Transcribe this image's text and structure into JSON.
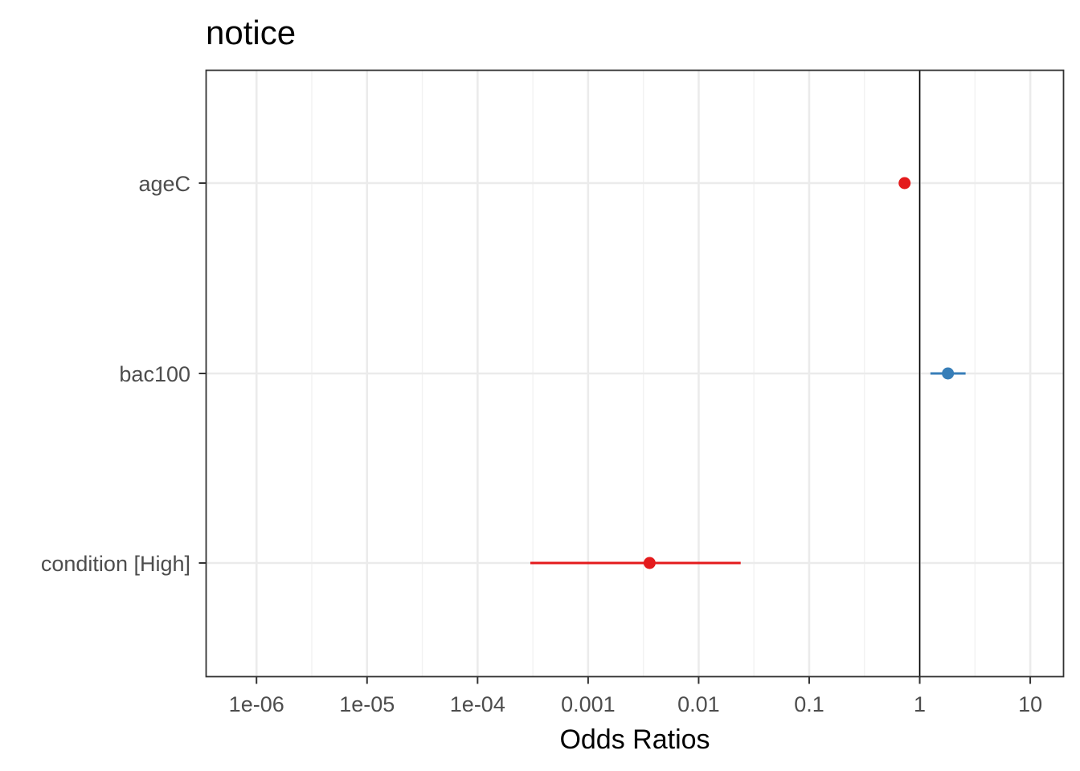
{
  "chart_data": {
    "type": "scatter",
    "title": "notice",
    "xlabel": "Odds Ratios",
    "ylabel": "",
    "x_scale": "log10",
    "xlim": [
      3.5e-07,
      20
    ],
    "x_ticks": [
      {
        "value": 1e-06,
        "label": "1e-06"
      },
      {
        "value": 1e-05,
        "label": "1e-05"
      },
      {
        "value": 0.0001,
        "label": "1e-04"
      },
      {
        "value": 0.001,
        "label": "0.001"
      },
      {
        "value": 0.01,
        "label": "0.01"
      },
      {
        "value": 0.1,
        "label": "0.1"
      },
      {
        "value": 1,
        "label": "1"
      },
      {
        "value": 10,
        "label": "10"
      }
    ],
    "reference_line": 1,
    "grid": true,
    "legend": "none",
    "terms": [
      {
        "label": "ageC",
        "estimate": 0.73,
        "ci_low": 0.69,
        "ci_high": 0.78,
        "color": "#E41A1C"
      },
      {
        "label": "bac100",
        "estimate": 1.8,
        "ci_low": 1.25,
        "ci_high": 2.6,
        "color": "#377EB8"
      },
      {
        "label": "condition [High]",
        "estimate": 0.0036,
        "ci_low": 0.0003,
        "ci_high": 0.024,
        "color": "#E41A1C"
      }
    ]
  }
}
